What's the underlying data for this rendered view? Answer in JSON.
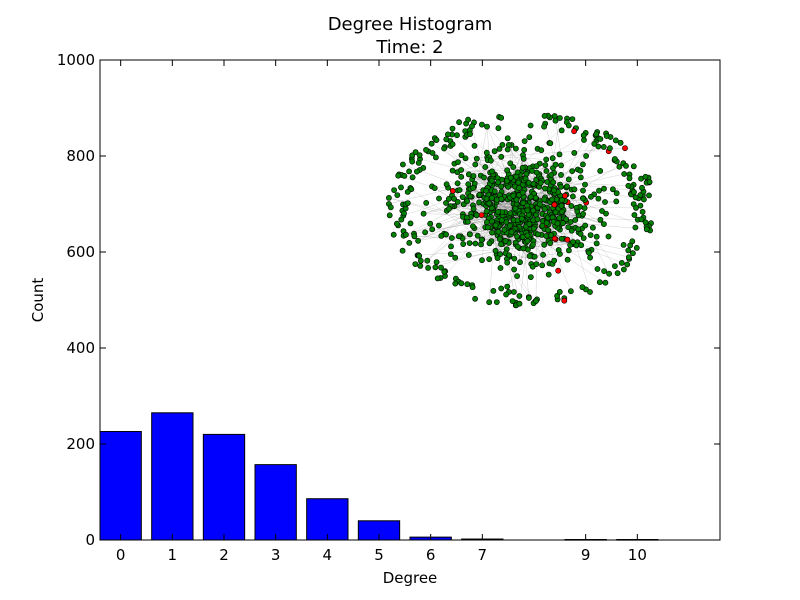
{
  "chart_data": {
    "type": "bar",
    "title": "Degree Histogram",
    "subtitle": "Time: 2",
    "xlabel": "Degree",
    "ylabel": "Count",
    "xlim": [
      -0.4,
      11.6
    ],
    "ylim": [
      0,
      1000
    ],
    "yticks": [
      0,
      200,
      400,
      600,
      800,
      1000
    ],
    "x_ticks": [
      0,
      1,
      2,
      3,
      4,
      5,
      6,
      7,
      9,
      10
    ],
    "x_tick_labels": [
      "0",
      "1",
      "2",
      "3",
      "4",
      "5",
      "6",
      "7",
      "9",
      "10"
    ],
    "bar_color": "#0000ff",
    "categories": [
      0,
      1,
      2,
      3,
      4,
      5,
      6,
      7,
      9,
      10
    ],
    "values": [
      226,
      265,
      220,
      157,
      86,
      40,
      6,
      2,
      1,
      1
    ],
    "grid": false,
    "inset": {
      "type": "network",
      "node_color": "#008000",
      "highlight_node_color": "#ff0000",
      "edge_color": "#808080"
    }
  }
}
